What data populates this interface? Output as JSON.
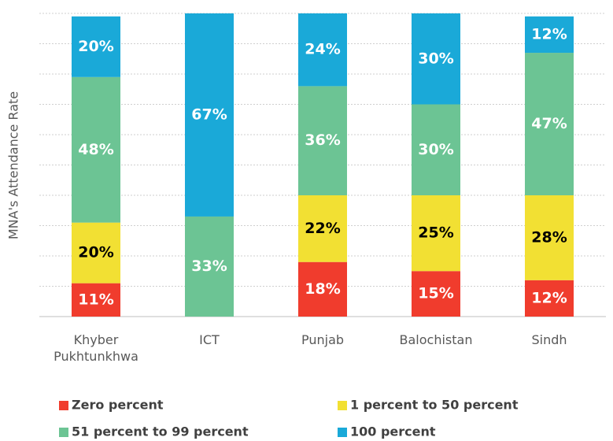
{
  "chart_data": {
    "type": "stacked_bar",
    "y_label": "MNA's Attendance Rate",
    "categories": [
      "Khyber Pukhtunkhwa",
      "ICT",
      "Punjab",
      "Balochistan",
      "Sindh"
    ],
    "ylim": [
      0,
      100
    ],
    "yticks": [
      0,
      10,
      20,
      30,
      40,
      50,
      60,
      70,
      80,
      90,
      100
    ],
    "grid": true,
    "legend": "bottom",
    "series": [
      {
        "name": "Zero percent",
        "color": "#f03c2d",
        "label_color": "#ffffff",
        "values": [
          11,
          0,
          18,
          15,
          12
        ],
        "value_labels": [
          "11%",
          null,
          "18%",
          "15%",
          "12%"
        ]
      },
      {
        "name": "1 percent to 50 percent",
        "color": "#f2e033",
        "label_color": "#000000",
        "values": [
          20,
          0,
          22,
          25,
          28
        ],
        "value_labels": [
          "20%",
          null,
          "22%",
          "25%",
          "28%"
        ]
      },
      {
        "name": "51 percent to 99 percent",
        "color": "#6cc494",
        "label_color": "#ffffff",
        "values": [
          48,
          33,
          36,
          30,
          47
        ],
        "value_labels": [
          "48%",
          "33%",
          "36%",
          "30%",
          "47%"
        ]
      },
      {
        "name": "100 percent",
        "color": "#1aa9d8",
        "label_color": "#ffffff",
        "values": [
          20,
          67,
          24,
          30,
          12
        ],
        "value_labels": [
          "20%",
          "67%",
          "24%",
          "30%",
          "12%"
        ]
      }
    ]
  }
}
